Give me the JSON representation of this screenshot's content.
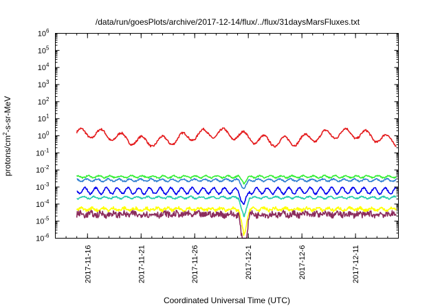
{
  "chart_data": {
    "type": "line",
    "title": "/data/run/goesPlots/archive/2017-12-14/flux/../flux/31daysMarsFluxes.txt",
    "xlabel": "Coordinated Universal Time (UTC)",
    "ylabel": {
      "prefix": "protons/cm",
      "sup": "2",
      "suffix": "-s-sr-MeV"
    },
    "y_scale": "log",
    "ylim": [
      1e-06,
      1000000.0
    ],
    "xlim": [
      "2017-11-13",
      "2017-12-15"
    ],
    "grid": false,
    "y_ticks": [
      {
        "base": "10",
        "exp": "-6"
      },
      {
        "base": "10",
        "exp": "-5"
      },
      {
        "base": "10",
        "exp": "-4"
      },
      {
        "base": "10",
        "exp": "-3"
      },
      {
        "base": "10",
        "exp": "-2"
      },
      {
        "base": "10",
        "exp": "-1"
      },
      {
        "base": "10",
        "exp": "0"
      },
      {
        "base": "10",
        "exp": "1"
      },
      {
        "base": "10",
        "exp": "2"
      },
      {
        "base": "10",
        "exp": "3"
      },
      {
        "base": "10",
        "exp": "4"
      },
      {
        "base": "10",
        "exp": "5"
      },
      {
        "base": "10",
        "exp": "6"
      }
    ],
    "x_ticks": [
      "2017-11-16",
      "2017-11-21",
      "2017-11-26",
      "2017-12-1",
      "2017-12-6",
      "2017-12-11"
    ],
    "series": [
      {
        "color": "#e41a1c",
        "level": 0.8,
        "amp": 0.28,
        "noise": 0.06,
        "period": 1.9,
        "dip": 0.0
      },
      {
        "color": "#33ee33",
        "level": 0.004,
        "amp": 0.06,
        "noise": 0.04,
        "period": 1.0,
        "dip": 0.35
      },
      {
        "color": "#2f7fd0",
        "level": 0.0025,
        "amp": 0.07,
        "noise": 0.04,
        "period": 1.0,
        "dip": 0.5
      },
      {
        "color": "#0000ee",
        "level": 0.0006,
        "amp": 0.18,
        "noise": 0.05,
        "period": 1.0,
        "dip": 0.9
      },
      {
        "color": "#22ccaa",
        "level": 0.00024,
        "amp": 0.06,
        "noise": 0.04,
        "period": 1.0,
        "dip": 1.2
      },
      {
        "color": "#ffff00",
        "level": 5e-05,
        "amp": 0.07,
        "noise": 0.09,
        "period": 1.0,
        "dip": 1.6
      },
      {
        "color": "#8b2c5c",
        "level": 2.5e-05,
        "amp": 0.06,
        "noise": 0.18,
        "period": 1.0,
        "dip": 2.4
      }
    ],
    "dip_date": "2017-11-30.6"
  }
}
